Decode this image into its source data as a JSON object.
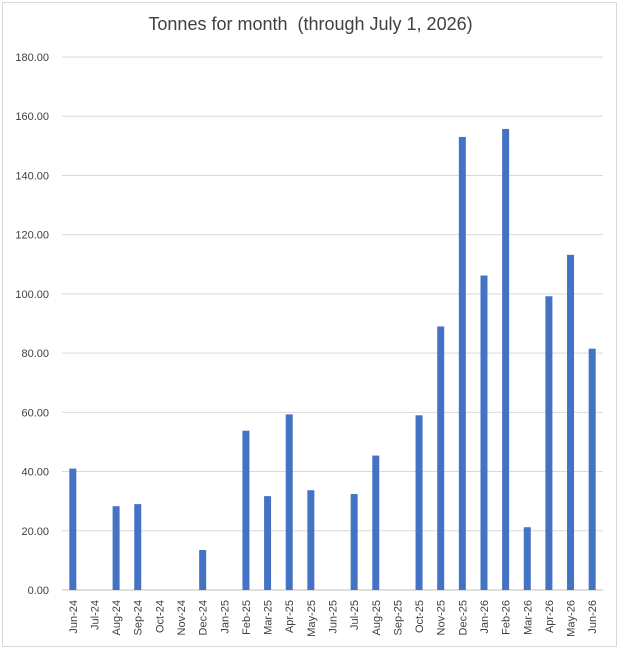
{
  "chart_data": {
    "type": "bar",
    "title": "Tonnes for month  (through July 1, 2026)",
    "xlabel": "",
    "ylabel": "",
    "ylim": [
      0,
      180
    ],
    "ytick_step": 20,
    "ytick_labels": [
      "0.00",
      "20.00",
      "40.00",
      "60.00",
      "80.00",
      "100.00",
      "120.00",
      "140.00",
      "160.00",
      "180.00"
    ],
    "grid": true,
    "legend": "none",
    "bar_color": "#4472c4",
    "categories": [
      "Jun-24",
      "Jul-24",
      "Aug-24",
      "Sep-24",
      "Oct-24",
      "Nov-24",
      "Dec-24",
      "Jan-25",
      "Feb-25",
      "Mar-25",
      "Apr-25",
      "May-25",
      "Jun-25",
      "Jul-25",
      "Aug-25",
      "Sep-25",
      "Oct-25",
      "Nov-25",
      "Dec-25",
      "Jan-26",
      "Feb-26",
      "Mar-26",
      "Apr-26",
      "May-26",
      "Jun-26"
    ],
    "values": [
      41.0,
      0,
      28.3,
      29.0,
      0,
      0,
      13.5,
      0,
      53.8,
      31.7,
      59.3,
      33.7,
      0,
      32.4,
      45.4,
      0,
      59.0,
      89.0,
      153.0,
      106.2,
      155.7,
      21.2,
      99.2,
      113.2,
      81.5
    ]
  }
}
